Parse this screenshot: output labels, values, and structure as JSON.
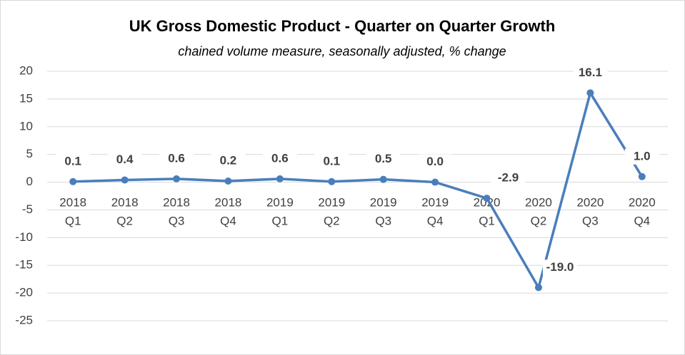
{
  "chart_data": {
    "type": "line",
    "title": "UK Gross Domestic Product - Quarter on Quarter Growth",
    "subtitle": "chained volume measure, seasonally adjusted, % change",
    "categories": [
      [
        "2018",
        "Q1"
      ],
      [
        "2018",
        "Q2"
      ],
      [
        "2018",
        "Q3"
      ],
      [
        "2018",
        "Q4"
      ],
      [
        "2019",
        "Q1"
      ],
      [
        "2019",
        "Q2"
      ],
      [
        "2019",
        "Q3"
      ],
      [
        "2019",
        "Q4"
      ],
      [
        "2020",
        "Q1"
      ],
      [
        "2020",
        "Q2"
      ],
      [
        "2020",
        "Q3"
      ],
      [
        "2020",
        "Q4"
      ]
    ],
    "values": [
      0.1,
      0.4,
      0.6,
      0.2,
      0.6,
      0.1,
      0.5,
      0.0,
      -2.9,
      -19.0,
      16.1,
      1.0
    ],
    "value_labels": [
      "0.1",
      "0.4",
      "0.6",
      "0.2",
      "0.6",
      "0.1",
      "0.5",
      "0.0",
      "-2.9",
      "-19.0",
      "16.1",
      "1.0"
    ],
    "color": "#4a7ebb",
    "ylim": [
      -25,
      20
    ],
    "yticks": [
      -25,
      -20,
      -15,
      -10,
      -5,
      0,
      5,
      10,
      15,
      20
    ],
    "grid": true
  }
}
